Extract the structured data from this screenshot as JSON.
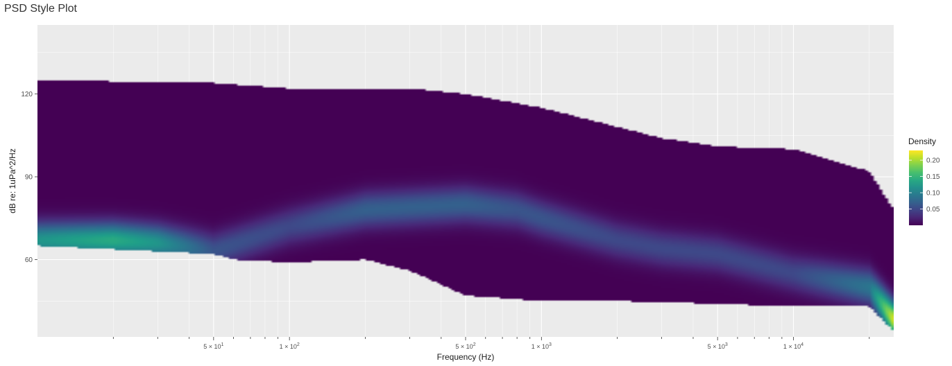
{
  "chart_data": {
    "type": "heatmap",
    "title": "PSD Style Plot",
    "xlabel": "Frequency (Hz)",
    "ylabel": "dB re: 1uPa^2/Hz",
    "x_scale": "log",
    "xlim": [
      10,
      25000
    ],
    "ylim": [
      32,
      145
    ],
    "x_ticks": [
      {
        "value": 50,
        "mantissa": "5",
        "exp": "1"
      },
      {
        "value": 100,
        "mantissa": "1",
        "exp": "2"
      },
      {
        "value": 500,
        "mantissa": "5",
        "exp": "2"
      },
      {
        "value": 1000,
        "mantissa": "1",
        "exp": "3"
      },
      {
        "value": 5000,
        "mantissa": "5",
        "exp": "3"
      },
      {
        "value": 10000,
        "mantissa": "1",
        "exp": "4"
      }
    ],
    "y_ticks": [
      60,
      90,
      120
    ],
    "grid": true,
    "legend": {
      "title": "Density",
      "position": "right",
      "ticks": [
        "0.05",
        "0.10",
        "0.15",
        "0.20"
      ],
      "tick_values": [
        0.05,
        0.1,
        0.15,
        0.2
      ],
      "min": 0,
      "max": 0.23,
      "colormap": "viridis"
    },
    "density_ridge": {
      "frequency_hz": [
        10,
        20,
        30,
        50,
        100,
        200,
        500,
        800,
        1000,
        2000,
        3000,
        5000,
        10000,
        20000,
        25000
      ],
      "peak_db": [
        67,
        67,
        66,
        63,
        72,
        78,
        80,
        78,
        75,
        67,
        64,
        62,
        55,
        50,
        38
      ],
      "peak_density": [
        0.12,
        0.14,
        0.12,
        0.06,
        0.05,
        0.07,
        0.07,
        0.06,
        0.06,
        0.05,
        0.05,
        0.05,
        0.05,
        0.09,
        0.22
      ]
    },
    "upper_envelope_db": {
      "frequency_hz": [
        10,
        50,
        100,
        300,
        500,
        1000,
        3000,
        5000,
        10000,
        20000,
        25000
      ],
      "db": [
        125,
        124,
        122,
        122,
        120,
        115,
        104,
        101,
        100,
        92,
        78
      ]
    },
    "lower_envelope_db": {
      "frequency_hz": [
        10,
        50,
        60,
        100,
        200,
        300,
        500,
        1000,
        2000,
        5000,
        10000,
        20000,
        25000
      ],
      "db": [
        65,
        62,
        60,
        59,
        60,
        56,
        47,
        45,
        45,
        44,
        43,
        43,
        34
      ]
    }
  }
}
